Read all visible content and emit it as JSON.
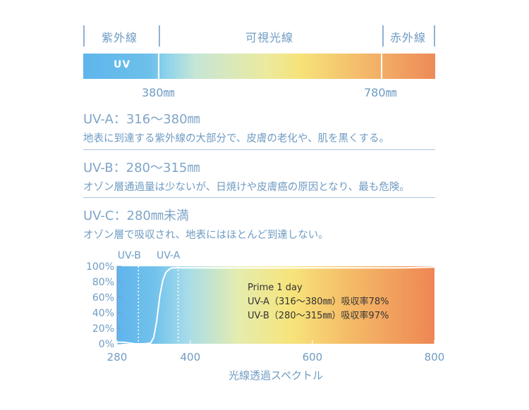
{
  "spectrum_bar": {
    "bands": [
      "紫外線",
      "可視光線",
      "赤外線"
    ],
    "uv_label": "UV",
    "wavelength_marks": [
      "380㎜",
      "780㎜"
    ]
  },
  "uv_types": [
    {
      "title": "UV-A：316〜380㎜",
      "description": "地表に到達する紫外線の大部分で、皮膚の老化や、肌を黒くする。"
    },
    {
      "title": "UV-B：280〜315㎜",
      "description": "オゾン層通過量は少ないが、日焼けや皮膚癌の原因となり、最も危険。"
    },
    {
      "title": "UV-C：280㎜未満",
      "description": "オゾン層で吸収され、地表にはほとんど到達しない。"
    }
  ],
  "chart_data": {
    "type": "line",
    "xlabel": "光線透過スペクトル",
    "ylabel": "",
    "xlim": [
      280,
      800
    ],
    "ylim": [
      0,
      100
    ],
    "x_ticks": [
      "280",
      "400",
      "600",
      "800"
    ],
    "y_ticks": [
      "0%",
      "20%",
      "40%",
      "60%",
      "80%",
      "100%"
    ],
    "region_labels": [
      "UV-B",
      "UV-A"
    ],
    "region_boundaries": [
      315,
      380
    ],
    "series": [
      {
        "x": [
          280,
          290,
          300,
          310,
          315,
          325,
          335,
          340,
          345,
          350,
          355,
          360,
          365,
          370,
          380,
          400,
          450,
          500,
          550,
          600,
          650,
          700,
          750,
          800
        ],
        "values": [
          2,
          2,
          1,
          0,
          0,
          0,
          1,
          8,
          30,
          62,
          82,
          92,
          96,
          98,
          98,
          98,
          98,
          98,
          98,
          98,
          98,
          98,
          98,
          99
        ]
      }
    ],
    "annotation": {
      "product": "Prime 1 day",
      "lines": [
        "UV-A（316〜380㎜）吸収率78%",
        "UV-B（280〜315㎜）吸収率97%"
      ]
    },
    "grid": false
  }
}
